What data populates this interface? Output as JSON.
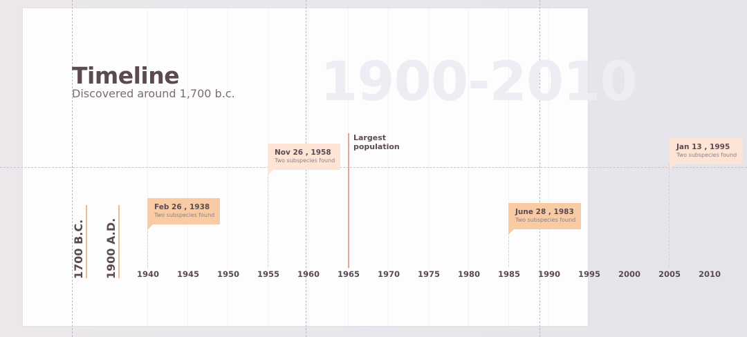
{
  "title": "Timeline",
  "subtitle": "Discovered around 1,700 b.c.",
  "range_label": "1900-2010",
  "eras": [
    {
      "label": "1700 B.C."
    },
    {
      "label": "1900 A.D."
    }
  ],
  "axis": {
    "ticks": [
      "1940",
      "1945",
      "1950",
      "1955",
      "1960",
      "1965",
      "1970",
      "1975",
      "1980",
      "1985",
      "1990",
      "1995",
      "2000",
      "2005",
      "2010"
    ]
  },
  "events": [
    {
      "date": "Feb 26 , 1938",
      "desc": "Two subspecies found",
      "color": "#f8cba4"
    },
    {
      "date": "Nov 26 , 1958",
      "desc": "Two subspecies found",
      "color": "#fde4d4"
    },
    {
      "date": "June 28 , 1983",
      "desc": "Two subspecies found",
      "color": "#f8cba4"
    },
    {
      "date": "Jan 13 , 1995",
      "desc": "Two subspecies found",
      "color": "#fde4d4"
    }
  ],
  "marker": {
    "label": "Largest population",
    "color": "#e4a58a"
  }
}
